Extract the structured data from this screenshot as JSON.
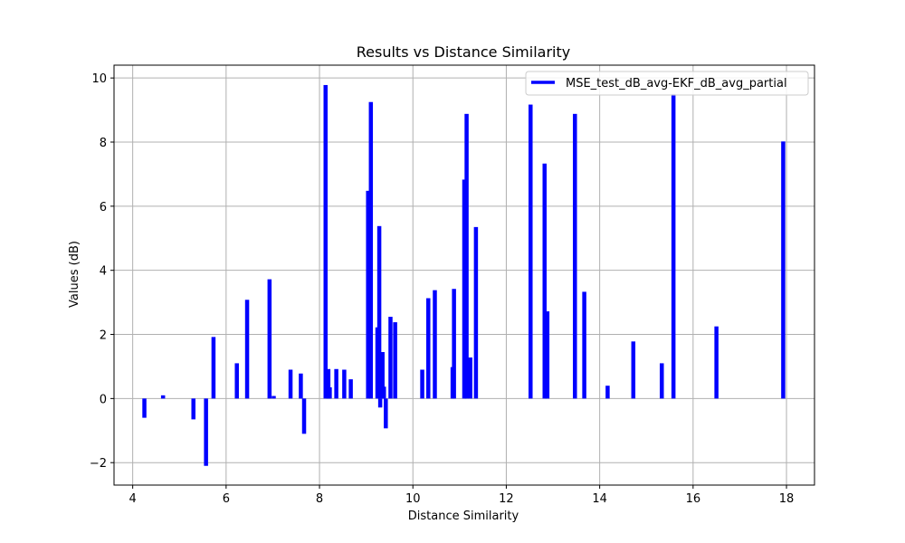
{
  "chart_data": {
    "type": "bar",
    "title": "Results vs Distance Similarity",
    "xlabel": "Distance Similarity",
    "ylabel": "Values (dB)",
    "xlim": [
      3.6,
      18.6
    ],
    "ylim": [
      -2.7,
      10.4
    ],
    "xticks": [
      4,
      6,
      8,
      10,
      12,
      14,
      16,
      18
    ],
    "yticks": [
      -2,
      0,
      2,
      4,
      6,
      8,
      10
    ],
    "grid": true,
    "legend_position": "top-right",
    "bar_color": "#0000ff",
    "series": [
      {
        "name": "MSE_test_dB_avg-EKF_dB_avg_partial",
        "color": "#0000ff",
        "points": [
          [
            4.25,
            -0.6
          ],
          [
            4.65,
            0.1
          ],
          [
            5.3,
            -0.65
          ],
          [
            5.57,
            -2.1
          ],
          [
            5.73,
            1.92
          ],
          [
            6.23,
            1.1
          ],
          [
            6.45,
            3.08
          ],
          [
            6.93,
            3.72
          ],
          [
            7.02,
            0.08
          ],
          [
            7.38,
            0.9
          ],
          [
            7.6,
            0.78
          ],
          [
            7.67,
            -1.1
          ],
          [
            8.13,
            9.78
          ],
          [
            8.19,
            0.92
          ],
          [
            8.22,
            0.35
          ],
          [
            8.36,
            0.92
          ],
          [
            8.53,
            0.9
          ],
          [
            8.67,
            0.6
          ],
          [
            9.04,
            6.48
          ],
          [
            9.1,
            9.25
          ],
          [
            9.24,
            2.22
          ],
          [
            9.28,
            5.38
          ],
          [
            9.3,
            -0.28
          ],
          [
            9.35,
            1.45
          ],
          [
            9.38,
            0.37
          ],
          [
            9.42,
            -0.93
          ],
          [
            9.52,
            2.55
          ],
          [
            9.62,
            2.38
          ],
          [
            10.2,
            0.9
          ],
          [
            10.33,
            3.13
          ],
          [
            10.47,
            3.38
          ],
          [
            10.85,
            0.98
          ],
          [
            10.88,
            3.42
          ],
          [
            11.1,
            6.83
          ],
          [
            11.15,
            8.88
          ],
          [
            11.23,
            1.28
          ],
          [
            11.35,
            5.35
          ],
          [
            12.52,
            9.17
          ],
          [
            12.82,
            7.33
          ],
          [
            12.88,
            2.72
          ],
          [
            13.47,
            8.88
          ],
          [
            13.67,
            3.33
          ],
          [
            14.17,
            0.4
          ],
          [
            14.72,
            1.78
          ],
          [
            15.33,
            1.1
          ],
          [
            15.58,
            9.5
          ],
          [
            16.5,
            2.25
          ],
          [
            17.93,
            8.02
          ]
        ]
      }
    ]
  }
}
